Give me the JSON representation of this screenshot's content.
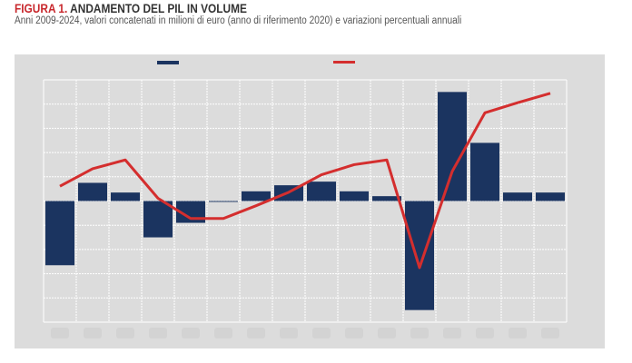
{
  "figure": {
    "label": "FIGURA 1.",
    "title": "ANDAMENTO DEL PIL IN VOLUME",
    "subtitle": "Anni 2009-2024, valori concatenati in milioni di euro (anno di riferimento 2020) e variazioni percentuali annuali"
  },
  "chart_data": {
    "type": "bar+line",
    "categories": [
      "2009",
      "2010",
      "2011",
      "2012",
      "2013",
      "2014",
      "2015",
      "2016",
      "2017",
      "2018",
      "2019",
      "2020",
      "2021",
      "2022",
      "2023",
      "2024"
    ],
    "series": [
      {
        "kind": "bar",
        "color": "#1b3460",
        "values": [
          -5.3,
          1.5,
          0.7,
          -3.0,
          -1.8,
          0.0,
          0.8,
          1.3,
          1.6,
          0.8,
          0.4,
          -9.0,
          9.0,
          4.8,
          0.7,
          0.7
        ]
      },
      {
        "kind": "line",
        "color": "#d42e2e",
        "values": [
          1782000,
          1808000,
          1821000,
          1764000,
          1734000,
          1734000,
          1753000,
          1773000,
          1799000,
          1814000,
          1821000,
          1661000,
          1804000,
          1891000,
          1906000,
          1920000
        ]
      }
    ],
    "bar_ylim": [
      -10,
      10
    ],
    "line_ylim": [
      1580000,
      1940000
    ],
    "grid": true,
    "legend": "top"
  }
}
